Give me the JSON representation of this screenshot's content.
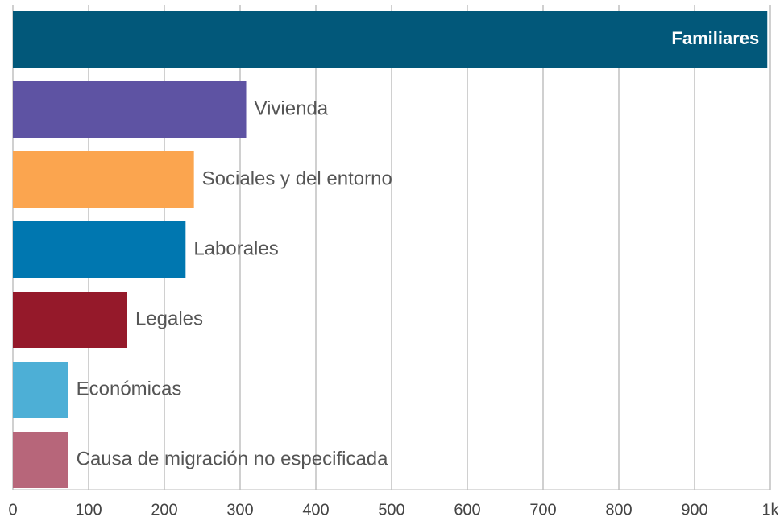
{
  "chart_data": {
    "type": "bar",
    "orientation": "horizontal",
    "categories": [
      "Familiares",
      "Vivienda",
      "Sociales y del entorno",
      "Laborales",
      "Legales",
      "Económicas",
      "Causa de migración no especificada"
    ],
    "values": [
      996,
      308,
      239,
      228,
      151,
      73,
      73
    ],
    "colors": [
      "#02587a",
      "#5e53a3",
      "#fba54f",
      "#0077b0",
      "#95192a",
      "#4dafd6",
      "#b7667a"
    ],
    "xlim": [
      0,
      1000
    ],
    "xticks": [
      0,
      100,
      200,
      300,
      400,
      500,
      600,
      700,
      800,
      900,
      {
        "value": 1000,
        "label": "1k"
      }
    ],
    "grid": true
  }
}
